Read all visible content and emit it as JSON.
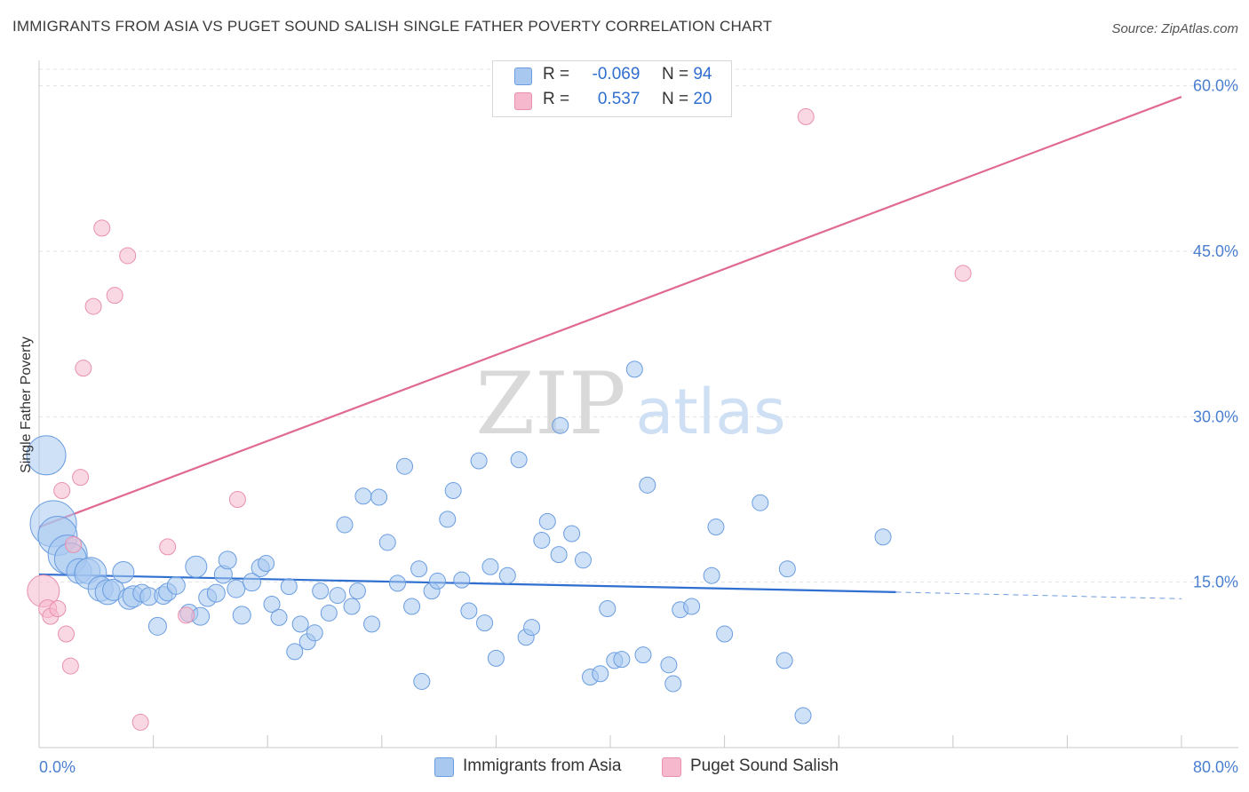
{
  "title": "IMMIGRANTS FROM ASIA VS PUGET SOUND SALISH SINGLE FATHER POVERTY CORRELATION CHART",
  "source": "Source: ZipAtlas.com",
  "watermark": {
    "zip": "ZIP",
    "atlas": "atlas"
  },
  "legend_top": [
    {
      "r_label": "R =",
      "r_value": "-0.069",
      "n_label": "N =",
      "n_value": "94",
      "color": "#a8c8f0"
    },
    {
      "r_label": "R =",
      "r_value": "0.537",
      "n_label": "N =",
      "n_value": "20",
      "color": "#f5b8cc"
    }
  ],
  "legend_bottom": [
    {
      "label": "Immigrants from Asia",
      "color": "#a8c8f0"
    },
    {
      "label": "Puget Sound Salish",
      "color": "#f5b8cc"
    }
  ],
  "chart_data": {
    "type": "scatter",
    "ylabel": "Single Father Poverty",
    "xlim": [
      0,
      80
    ],
    "ylim": [
      0,
      61.5
    ],
    "x_tick_labels": [
      "0.0%",
      "80.0%"
    ],
    "y_ticks": [
      15,
      30,
      45,
      60
    ],
    "y_tick_labels": [
      "15.0%",
      "30.0%",
      "45.0%",
      "60.0%"
    ],
    "grid": true,
    "series": [
      {
        "name": "Immigrants from Asia",
        "color": "#a8c8f0",
        "stroke": "#6b9de0",
        "trend_color": "#2e6fd0",
        "trend": {
          "x0": 0,
          "y0": 15.7,
          "x1": 60,
          "y1": 14.1,
          "dash_to": 80,
          "dash_y": 13.5
        },
        "points": [
          [
            0.5,
            26.5,
            22
          ],
          [
            1.0,
            20.3,
            26
          ],
          [
            1.3,
            19.2,
            22
          ],
          [
            2.0,
            17.5,
            22
          ],
          [
            2.2,
            17.1,
            18
          ],
          [
            2.8,
            16.0,
            14
          ],
          [
            3.4,
            16.0,
            14
          ],
          [
            3.6,
            15.8,
            18
          ],
          [
            4.3,
            14.4,
            14
          ],
          [
            4.8,
            14.1,
            14
          ],
          [
            5.2,
            14.3,
            12
          ],
          [
            5.9,
            15.9,
            12
          ],
          [
            6.3,
            13.5,
            12
          ],
          [
            6.6,
            13.7,
            12
          ],
          [
            7.2,
            14.0,
            10
          ],
          [
            7.7,
            13.7,
            10
          ],
          [
            8.3,
            11.0,
            10
          ],
          [
            8.7,
            13.8,
            10
          ],
          [
            9.0,
            14.1,
            10
          ],
          [
            9.6,
            14.7,
            10
          ],
          [
            10.5,
            12.2,
            10
          ],
          [
            11.0,
            16.4,
            12
          ],
          [
            11.3,
            11.9,
            10
          ],
          [
            11.8,
            13.6,
            10
          ],
          [
            12.4,
            14.0,
            10
          ],
          [
            12.9,
            15.7,
            10
          ],
          [
            13.2,
            17.0,
            10
          ],
          [
            13.8,
            14.4,
            10
          ],
          [
            14.2,
            12.0,
            10
          ],
          [
            14.9,
            15.0,
            10
          ],
          [
            15.5,
            16.3,
            10
          ],
          [
            15.9,
            16.7,
            9
          ],
          [
            16.3,
            13.0,
            9
          ],
          [
            16.8,
            11.8,
            9
          ],
          [
            17.5,
            14.6,
            9
          ],
          [
            17.9,
            8.7,
            9
          ],
          [
            18.3,
            11.2,
            9
          ],
          [
            18.8,
            9.6,
            9
          ],
          [
            19.3,
            10.4,
            9
          ],
          [
            19.7,
            14.2,
            9
          ],
          [
            20.3,
            12.2,
            9
          ],
          [
            20.9,
            13.8,
            9
          ],
          [
            21.4,
            20.2,
            9
          ],
          [
            21.9,
            12.8,
            9
          ],
          [
            22.3,
            14.2,
            9
          ],
          [
            22.7,
            22.8,
            9
          ],
          [
            23.3,
            11.2,
            9
          ],
          [
            23.8,
            22.7,
            9
          ],
          [
            24.4,
            18.6,
            9
          ],
          [
            25.1,
            14.9,
            9
          ],
          [
            25.6,
            25.5,
            9
          ],
          [
            26.1,
            12.8,
            9
          ],
          [
            26.6,
            16.2,
            9
          ],
          [
            26.8,
            6.0,
            9
          ],
          [
            27.5,
            14.2,
            9
          ],
          [
            27.9,
            15.1,
            9
          ],
          [
            28.6,
            20.7,
            9
          ],
          [
            29.0,
            23.3,
            9
          ],
          [
            29.6,
            15.2,
            9
          ],
          [
            30.1,
            12.4,
            9
          ],
          [
            30.8,
            26.0,
            9
          ],
          [
            31.2,
            11.3,
            9
          ],
          [
            31.6,
            16.4,
            9
          ],
          [
            32.0,
            8.1,
            9
          ],
          [
            32.8,
            15.6,
            9
          ],
          [
            33.6,
            26.1,
            9
          ],
          [
            34.1,
            10.0,
            9
          ],
          [
            34.5,
            10.9,
            9
          ],
          [
            35.2,
            18.8,
            9
          ],
          [
            35.6,
            20.5,
            9
          ],
          [
            36.4,
            17.5,
            9
          ],
          [
            36.5,
            29.2,
            9
          ],
          [
            37.3,
            19.4,
            9
          ],
          [
            38.1,
            17.0,
            9
          ],
          [
            38.6,
            6.4,
            9
          ],
          [
            39.3,
            6.7,
            9
          ],
          [
            39.8,
            12.6,
            9
          ],
          [
            40.3,
            7.9,
            9
          ],
          [
            40.8,
            8.0,
            9
          ],
          [
            41.7,
            34.3,
            9
          ],
          [
            42.3,
            8.4,
            9
          ],
          [
            42.6,
            23.8,
            9
          ],
          [
            44.1,
            7.5,
            9
          ],
          [
            44.4,
            5.8,
            9
          ],
          [
            44.9,
            12.5,
            9
          ],
          [
            45.7,
            12.8,
            9
          ],
          [
            47.1,
            15.6,
            9
          ],
          [
            47.4,
            20.0,
            9
          ],
          [
            48.0,
            10.3,
            9
          ],
          [
            50.5,
            22.2,
            9
          ],
          [
            52.2,
            7.9,
            9
          ],
          [
            52.4,
            16.2,
            9
          ],
          [
            53.5,
            2.9,
            9
          ],
          [
            59.1,
            19.1,
            9
          ]
        ]
      },
      {
        "name": "Puget Sound Salish",
        "color": "#f5b8cc",
        "stroke": "#e890ae",
        "trend_color": "#e06a92",
        "trend": {
          "x0": 0,
          "y0": 20.0,
          "x1": 80,
          "y1": 59.0
        },
        "points": [
          [
            0.3,
            14.2,
            18
          ],
          [
            0.6,
            12.6,
            10
          ],
          [
            0.8,
            11.9,
            9
          ],
          [
            1.3,
            12.6,
            9
          ],
          [
            1.6,
            23.3,
            9
          ],
          [
            1.9,
            10.3,
            9
          ],
          [
            2.2,
            7.4,
            9
          ],
          [
            2.4,
            18.4,
            9
          ],
          [
            2.9,
            24.5,
            9
          ],
          [
            3.1,
            34.4,
            9
          ],
          [
            3.8,
            40.0,
            9
          ],
          [
            4.4,
            47.1,
            9
          ],
          [
            5.3,
            41.0,
            9
          ],
          [
            6.2,
            44.6,
            9
          ],
          [
            7.1,
            2.3,
            9
          ],
          [
            9.0,
            18.2,
            9
          ],
          [
            10.3,
            12.0,
            9
          ],
          [
            13.9,
            22.5,
            9
          ],
          [
            53.7,
            57.2,
            9
          ],
          [
            64.7,
            43.0,
            9
          ]
        ]
      }
    ]
  }
}
